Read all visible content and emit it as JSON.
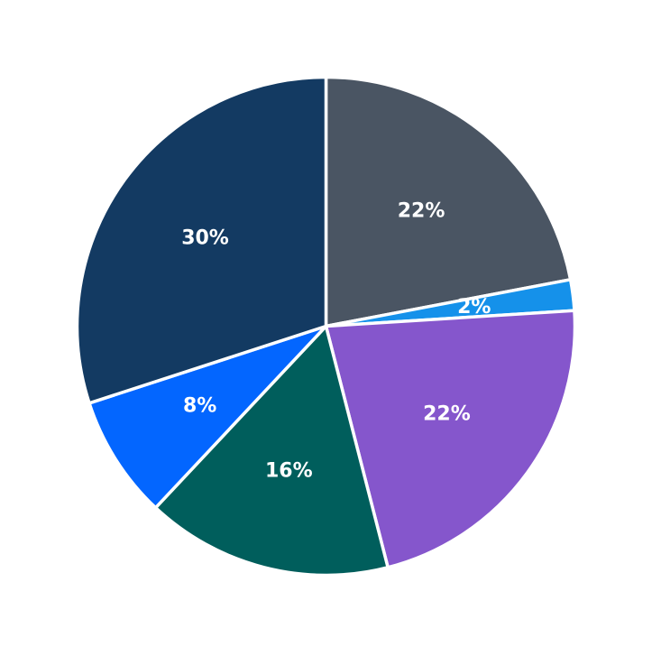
{
  "chart_data": {
    "type": "pie",
    "start": "12 o'clock",
    "direction": "clockwise",
    "legend": "none",
    "slices": [
      {
        "value": 22,
        "label": "22%",
        "color": "#4a5563"
      },
      {
        "value": 2,
        "label": "2%",
        "color": "#1591ea"
      },
      {
        "value": 22,
        "label": "22%",
        "color": "#8556cc"
      },
      {
        "value": 16,
        "label": "16%",
        "color": "#005e5c"
      },
      {
        "value": 8,
        "label": "8%",
        "color": "#0366ff"
      },
      {
        "value": 30,
        "label": "30%",
        "color": "#133a62"
      }
    ]
  }
}
